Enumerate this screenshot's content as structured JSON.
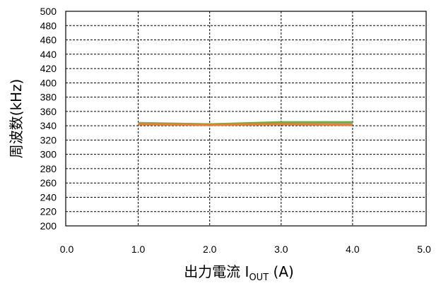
{
  "chart_data": {
    "type": "line",
    "title": "",
    "xlabel": "出力電流 I_OUT (A)",
    "xlabel_parts": {
      "main": "出力電流 I",
      "sub": "OUT",
      "unit": " (A)"
    },
    "ylabel": "周波数(kHz)",
    "xlim": [
      0,
      5
    ],
    "ylim": [
      200,
      500
    ],
    "x_ticks": [
      "0.0",
      "1.0",
      "2.0",
      "3.0",
      "4.0",
      "5.0"
    ],
    "y_ticks": [
      "200",
      "220",
      "240",
      "260",
      "280",
      "300",
      "320",
      "340",
      "360",
      "380",
      "400",
      "420",
      "440",
      "460",
      "480",
      "500"
    ],
    "grid": true,
    "legend": "none",
    "series": [
      {
        "color": "#5b9bd5",
        "x": [
          1.0,
          2.0,
          3.0,
          4.0
        ],
        "y": [
          343,
          342,
          343,
          343
        ]
      },
      {
        "color": "#a5a5a5",
        "x": [
          1.0,
          2.0,
          3.0,
          4.0
        ],
        "y": [
          344,
          342,
          344,
          344
        ]
      },
      {
        "color": "#70ad47",
        "x": [
          1.0,
          2.0,
          3.0,
          4.0
        ],
        "y": [
          343,
          342,
          345,
          345
        ]
      },
      {
        "color": "#ed7d31",
        "x": [
          1.0,
          2.0,
          3.0,
          4.0
        ],
        "y": [
          342,
          341,
          342,
          341
        ]
      }
    ]
  }
}
